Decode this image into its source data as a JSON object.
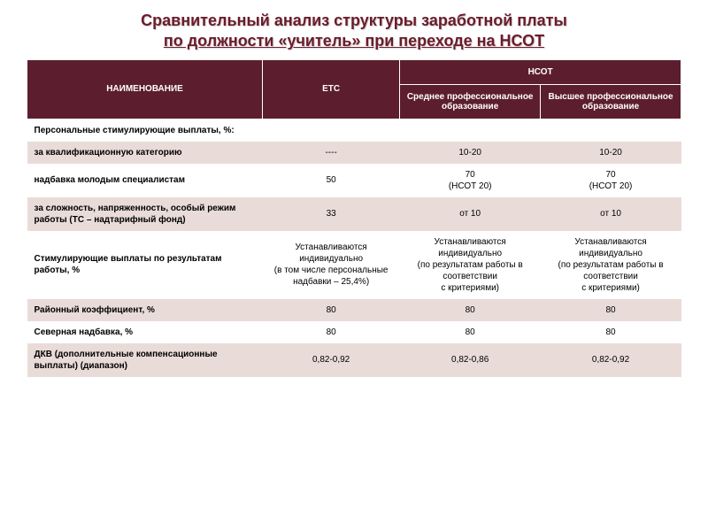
{
  "title": {
    "line1": "Сравнительный анализ структуры заработной платы",
    "line2": "по должности «учитель» при переходе на НСОТ",
    "color": "#6b1b2a",
    "fontsize": 18
  },
  "table": {
    "header_bg": "#5c1e2e",
    "header_fg": "#ffffff",
    "alt_row_bg": "#e9dcd8",
    "plain_row_bg": "#ffffff",
    "fontsize": 10,
    "columns": {
      "name": "НАИМЕНОВАНИЕ",
      "etc": "ЕТС",
      "nsot_group": "НСОТ",
      "nsot_sub1": "Среднее профессиональное образование",
      "nsot_sub2": "Высшее профессиональное образование"
    },
    "rows": [
      {
        "style": "plain",
        "cells": [
          "Персональные стимулирующие выплаты, %:",
          "",
          "",
          ""
        ]
      },
      {
        "style": "alt",
        "cells": [
          "  за квалификационную категорию",
          "----",
          "10-20",
          "10-20"
        ]
      },
      {
        "style": "plain",
        "cells": [
          "надбавка молодым специалистам",
          "50",
          "70\n(НСОТ 20)",
          "70\n(НСОТ  20)"
        ]
      },
      {
        "style": "alt",
        "cells": [
          "за сложность, напряженность, особый режим работы  (ТС – надтарифный фонд)",
          "33",
          "от 10",
          "от 10"
        ]
      },
      {
        "style": "plain",
        "cells": [
          "Стимулирующие  выплаты по результатам работы, %",
          "Устанавливаются индивидуально\n(в том числе персональные надбавки – 25,4%)",
          "Устанавливаются индивидуально\n(по результатам работы в соответствии\nс  критериями)",
          "Устанавливаются индивидуально\n(по результатам работы в соответствии\nс  критериями)"
        ]
      },
      {
        "style": "alt",
        "cells": [
          " Районный коэффициент, %",
          "80",
          "80",
          "80"
        ]
      },
      {
        "style": "plain",
        "cells": [
          "Северная надбавка, %",
          "80",
          "80",
          "80"
        ]
      },
      {
        "style": "alt",
        "cells": [
          "ДКВ (дополнительные компенсационные выплаты) (диапазон)",
          "0,82-0,92",
          "0,82-0,86",
          "0,82-0,92"
        ]
      }
    ]
  }
}
